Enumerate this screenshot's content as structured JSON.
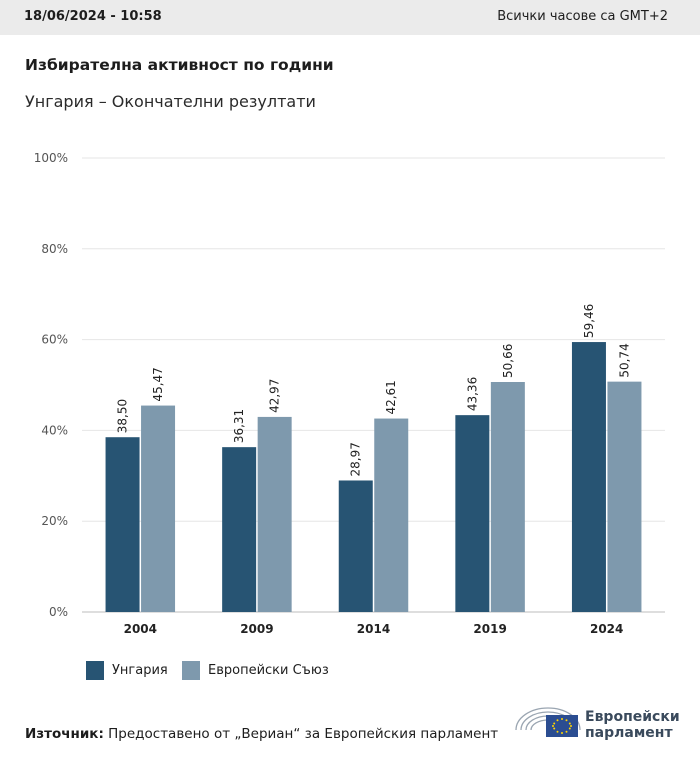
{
  "header": {
    "datetime": "18/06/2024 - 10:58",
    "timezone": "Всички часове са GMT+2"
  },
  "title": "Избирателна активност по години",
  "subtitle": "Унгария – Окончателни резултати",
  "chart_data": {
    "type": "bar",
    "categories": [
      "2004",
      "2009",
      "2014",
      "2019",
      "2024"
    ],
    "series": [
      {
        "name": "Унгария",
        "color": "#275473",
        "values": [
          38.5,
          36.31,
          28.97,
          43.36,
          59.46
        ],
        "labels": [
          "38,50",
          "36,31",
          "28,97",
          "43,36",
          "59,46"
        ]
      },
      {
        "name": "Европейски Съюз",
        "color": "#7e99ad",
        "values": [
          45.47,
          42.97,
          42.61,
          50.66,
          50.74
        ],
        "labels": [
          "45,47",
          "42,97",
          "42,61",
          "50,66",
          "50,74"
        ]
      }
    ],
    "ylim": [
      0,
      100
    ],
    "yticks": [
      0,
      20,
      40,
      60,
      80,
      100
    ],
    "ytick_labels": [
      "0%",
      "20%",
      "40%",
      "60%",
      "80%",
      "100%"
    ],
    "grid": true,
    "legend_position": "bottom-left"
  },
  "source": {
    "label": "Източник:",
    "text": " Предоставено от „Вериан“ за Европейския парламент"
  },
  "logo": {
    "line1": "Европейски",
    "line2": "парламент"
  }
}
